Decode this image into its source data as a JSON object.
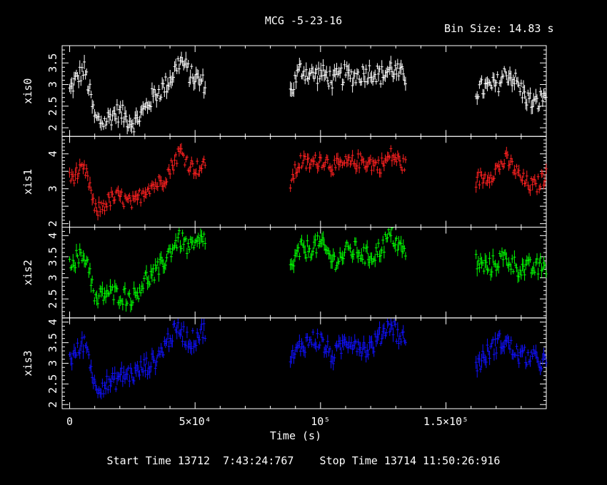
{
  "title": "MCG -5-23-16",
  "bin_size_label": "Bin Size: 14.83 s",
  "footer": "Start Time 13712  7:43:24:767    Stop Time 13714 11:50:26:916",
  "chart_data": {
    "type": "scatter",
    "xlabel": "Time (s)",
    "xlim": [
      -3000,
      190000
    ],
    "x_ticks": [
      {
        "value": 0,
        "label": "0"
      },
      {
        "value": 50000,
        "label": "5×10⁴"
      },
      {
        "value": 100000,
        "label": "10⁵"
      },
      {
        "value": 150000,
        "label": "1.5×10⁵"
      }
    ],
    "x_minor_step": 10000,
    "segments": [
      [
        0,
        54000
      ],
      [
        88000,
        134000
      ],
      [
        162000,
        190000
      ]
    ],
    "panels": [
      {
        "name": "xis0",
        "color": "#ffffff",
        "ylim": [
          1.8,
          3.9
        ],
        "yminor": 0.1,
        "yticks": [
          {
            "value": 2,
            "label": "2"
          },
          {
            "value": 2.5,
            "label": "2.5"
          },
          {
            "value": 3,
            "label": "3"
          },
          {
            "value": 3.5,
            "label": "3.5"
          }
        ],
        "profile": [
          [
            0,
            2.85
          ],
          [
            6000,
            3.3
          ],
          [
            8000,
            2.85
          ],
          [
            10000,
            2.3
          ],
          [
            14000,
            2.15
          ],
          [
            20000,
            2.3
          ],
          [
            26000,
            2.2
          ],
          [
            30000,
            2.4
          ],
          [
            36000,
            2.85
          ],
          [
            40000,
            3.2
          ],
          [
            44000,
            3.55
          ],
          [
            48000,
            3.15
          ],
          [
            54000,
            3.1
          ],
          [
            88000,
            2.75
          ],
          [
            92000,
            3.3
          ],
          [
            100000,
            3.3
          ],
          [
            105000,
            3.0
          ],
          [
            110000,
            3.3
          ],
          [
            118000,
            3.2
          ],
          [
            124000,
            3.25
          ],
          [
            128000,
            3.45
          ],
          [
            132000,
            3.15
          ],
          [
            134000,
            3.1
          ],
          [
            162000,
            2.75
          ],
          [
            168000,
            3.0
          ],
          [
            174000,
            3.25
          ],
          [
            180000,
            2.85
          ],
          [
            186000,
            2.6
          ],
          [
            190000,
            2.75
          ]
        ]
      },
      {
        "name": "xis1",
        "color": "#ff2020",
        "ylim": [
          1.9,
          4.5
        ],
        "yminor": 0.1,
        "yticks": [
          {
            "value": 2,
            "label": "2"
          },
          {
            "value": 3,
            "label": "3"
          },
          {
            "value": 4,
            "label": "4"
          }
        ],
        "profile": [
          [
            0,
            3.2
          ],
          [
            6000,
            3.55
          ],
          [
            8000,
            3.2
          ],
          [
            10000,
            2.4
          ],
          [
            14000,
            2.5
          ],
          [
            20000,
            2.8
          ],
          [
            26000,
            2.6
          ],
          [
            30000,
            2.9
          ],
          [
            36000,
            3.25
          ],
          [
            40000,
            3.6
          ],
          [
            44000,
            4.0
          ],
          [
            48000,
            3.65
          ],
          [
            54000,
            3.7
          ],
          [
            88000,
            3.1
          ],
          [
            92000,
            3.8
          ],
          [
            100000,
            3.8
          ],
          [
            105000,
            3.6
          ],
          [
            110000,
            3.8
          ],
          [
            118000,
            3.7
          ],
          [
            124000,
            3.75
          ],
          [
            128000,
            3.95
          ],
          [
            132000,
            3.65
          ],
          [
            134000,
            3.6
          ],
          [
            162000,
            3.2
          ],
          [
            168000,
            3.5
          ],
          [
            174000,
            3.75
          ],
          [
            180000,
            3.35
          ],
          [
            186000,
            3.05
          ],
          [
            190000,
            3.3
          ]
        ]
      },
      {
        "name": "xis2",
        "color": "#00ff00",
        "ylim": [
          2.05,
          4.2
        ],
        "yminor": 0.1,
        "yticks": [
          {
            "value": 2.5,
            "label": "2.5"
          },
          {
            "value": 3,
            "label": "3"
          },
          {
            "value": 3.5,
            "label": "3.5"
          },
          {
            "value": 4,
            "label": "4"
          }
        ],
        "profile": [
          [
            0,
            3.35
          ],
          [
            6000,
            3.6
          ],
          [
            8000,
            3.3
          ],
          [
            10000,
            2.4
          ],
          [
            14000,
            2.55
          ],
          [
            20000,
            2.7
          ],
          [
            26000,
            2.5
          ],
          [
            30000,
            2.9
          ],
          [
            36000,
            3.3
          ],
          [
            40000,
            3.6
          ],
          [
            44000,
            3.85
          ],
          [
            48000,
            3.75
          ],
          [
            54000,
            3.95
          ],
          [
            88000,
            3.15
          ],
          [
            92000,
            3.75
          ],
          [
            100000,
            3.7
          ],
          [
            105000,
            3.45
          ],
          [
            110000,
            3.65
          ],
          [
            118000,
            3.5
          ],
          [
            124000,
            3.75
          ],
          [
            128000,
            3.95
          ],
          [
            132000,
            3.65
          ],
          [
            134000,
            3.65
          ],
          [
            162000,
            3.4
          ],
          [
            168000,
            3.3
          ],
          [
            174000,
            3.4
          ],
          [
            180000,
            3.3
          ],
          [
            186000,
            3.15
          ],
          [
            190000,
            3.25
          ]
        ]
      },
      {
        "name": "xis3",
        "color": "#1010ff",
        "ylim": [
          1.9,
          4.1
        ],
        "yminor": 0.1,
        "yticks": [
          {
            "value": 2,
            "label": "2"
          },
          {
            "value": 2.5,
            "label": "2.5"
          },
          {
            "value": 3,
            "label": "3"
          },
          {
            "value": 3.5,
            "label": "3.5"
          },
          {
            "value": 4,
            "label": "4"
          }
        ],
        "profile": [
          [
            0,
            3.1
          ],
          [
            6000,
            3.6
          ],
          [
            8000,
            3.1
          ],
          [
            10000,
            2.35
          ],
          [
            14000,
            2.45
          ],
          [
            20000,
            2.75
          ],
          [
            26000,
            2.65
          ],
          [
            30000,
            2.95
          ],
          [
            36000,
            3.25
          ],
          [
            40000,
            3.55
          ],
          [
            44000,
            3.85
          ],
          [
            48000,
            3.6
          ],
          [
            54000,
            3.75
          ],
          [
            88000,
            3.1
          ],
          [
            92000,
            3.5
          ],
          [
            100000,
            3.5
          ],
          [
            105000,
            3.25
          ],
          [
            110000,
            3.5
          ],
          [
            118000,
            3.4
          ],
          [
            124000,
            3.65
          ],
          [
            128000,
            3.9
          ],
          [
            132000,
            3.65
          ],
          [
            134000,
            3.7
          ],
          [
            162000,
            3.05
          ],
          [
            168000,
            3.3
          ],
          [
            174000,
            3.55
          ],
          [
            180000,
            3.2
          ],
          [
            186000,
            3.0
          ],
          [
            190000,
            3.1
          ]
        ]
      }
    ]
  }
}
